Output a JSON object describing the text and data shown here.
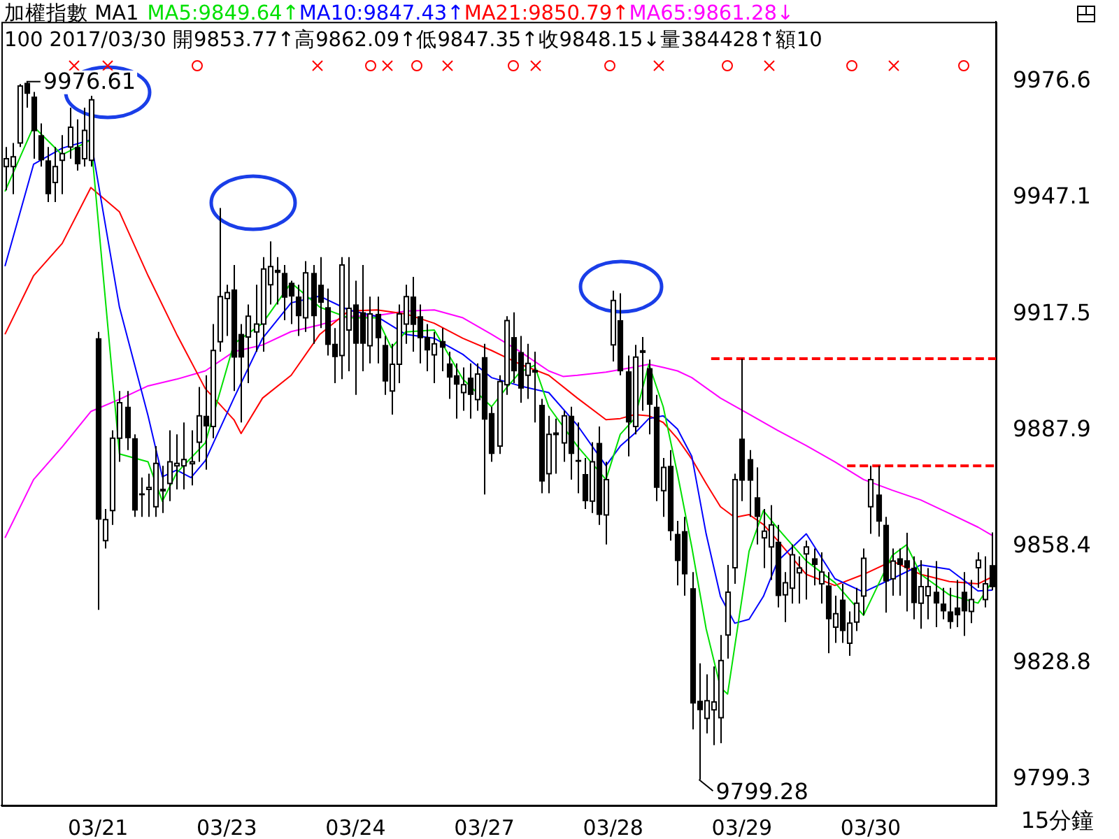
{
  "chart_data": {
    "type": "candlestick",
    "title": "加權指數 MA1",
    "subtitle": "100 2017/03/30 開9853.77↑高9862.09↑低9847.35↑收9848.15↓量384428↑額10",
    "categories": [
      null,
      null,
      null,
      null,
      null,
      null,
      null,
      null,
      null,
      null,
      null,
      null,
      null,
      "03/21",
      null,
      null,
      null,
      null,
      null,
      null,
      null,
      null,
      null,
      null,
      null,
      null,
      null,
      null,
      null,
      null,
      null,
      "03/23",
      null,
      null,
      null,
      null,
      null,
      null,
      null,
      null,
      null,
      null,
      null,
      null,
      null,
      null,
      null,
      null,
      null,
      "03/24",
      null,
      null,
      null,
      null,
      null,
      null,
      null,
      null,
      null,
      null,
      null,
      null,
      null,
      null,
      null,
      null,
      null,
      "03/27",
      null,
      null,
      null,
      null,
      null,
      null,
      null,
      null,
      null,
      null,
      null,
      null,
      null,
      null,
      null,
      null,
      null,
      "03/28",
      null,
      null,
      null,
      null,
      null,
      null,
      null,
      null,
      null,
      null,
      null,
      null,
      null,
      null,
      null,
      null,
      null,
      "03/29",
      null,
      null,
      null,
      null,
      null,
      null,
      null,
      null,
      null,
      null,
      null,
      null,
      null,
      null,
      null,
      null,
      null,
      "03/30",
      null,
      null,
      null,
      null,
      null,
      null,
      null,
      null,
      null,
      null,
      null,
      null,
      null,
      null,
      null,
      null,
      null
    ],
    "ohlc": [
      [
        9955,
        9960,
        9949,
        9957
      ],
      [
        9955,
        9961,
        9948,
        9957.5
      ],
      [
        9961,
        9976,
        9960,
        9975.5
      ],
      [
        9976.3,
        9976.61,
        9970,
        9973.5
      ],
      [
        9972.8,
        9974,
        9957,
        9964
      ],
      [
        9963,
        9966,
        9955,
        9956.6
      ],
      [
        9956.6,
        9960,
        9946,
        9948
      ],
      [
        9951,
        9960,
        9946,
        9955
      ],
      [
        9956.6,
        9963,
        9948,
        9958.3
      ],
      [
        9960,
        9970,
        9957,
        9965
      ],
      [
        9960,
        9967,
        9954,
        9955.6
      ],
      [
        9957,
        9970,
        9955,
        9964.2
      ],
      [
        9956.6,
        9973,
        9955,
        9972
      ],
      [
        9911.4,
        9913,
        9842.4,
        9865.3
      ],
      [
        9860,
        9868,
        9858,
        9865.3
      ],
      [
        9867.6,
        9888,
        9864,
        9886
      ],
      [
        9886,
        9898,
        9880,
        9895
      ],
      [
        9894,
        9898,
        9883,
        9886
      ],
      [
        9886,
        9887,
        9866,
        9867.6
      ],
      [
        9872,
        9876,
        9866,
        9871.5
      ],
      [
        9873,
        9877,
        9866,
        9873.5
      ],
      [
        9868.6,
        9884,
        9866,
        9879.6
      ],
      [
        9873,
        9879,
        9867,
        9873
      ],
      [
        9874.5,
        9888,
        9870,
        9880
      ],
      [
        9879,
        9887,
        9873,
        9879.6
      ],
      [
        9879,
        9890,
        9873,
        9880.6
      ],
      [
        9879.5,
        9888,
        9874,
        9880
      ],
      [
        9885,
        9899,
        9880,
        9891.7
      ],
      [
        9891.7,
        9902,
        9878,
        9889
      ],
      [
        9889,
        9915,
        9886,
        9908.3
      ],
      [
        9910.5,
        9944.5,
        9908,
        9922
      ],
      [
        9921.5,
        9925,
        9912,
        9923
      ],
      [
        9923.8,
        9930,
        9898,
        9906.5
      ],
      [
        9912.5,
        9915,
        9890,
        9906.5
      ],
      [
        9911.7,
        9920,
        9900,
        9917
      ],
      [
        9913,
        9925,
        9908,
        9915
      ],
      [
        9915,
        9932,
        9908,
        9929
      ],
      [
        9925,
        9936,
        9920,
        9929.6
      ],
      [
        9928.8,
        9932,
        9920,
        9928
      ],
      [
        9928,
        9930,
        9916,
        9921.7
      ],
      [
        9925.5,
        9926,
        9915,
        9922
      ],
      [
        9922,
        9925,
        9912,
        9917
      ],
      [
        9916.6,
        9931,
        9913,
        9928
      ],
      [
        9928,
        9930,
        9910,
        9917
      ],
      [
        9925,
        9932,
        9914,
        9920.4
      ],
      [
        9919.3,
        9924,
        9907,
        9909.7
      ],
      [
        9910,
        9914,
        9900,
        9906.6
      ],
      [
        9907,
        9932,
        9901,
        9930
      ],
      [
        9913.5,
        9932,
        9903,
        9919
      ],
      [
        9920,
        9926,
        9897,
        9910
      ],
      [
        9918,
        9930,
        9903,
        9910
      ],
      [
        9909.5,
        9922,
        9905,
        9917.6
      ],
      [
        9917.6,
        9922,
        9905,
        9911.4
      ],
      [
        9909.7,
        9912,
        9897,
        9900.4
      ],
      [
        9898,
        9910,
        9892,
        9904.8
      ],
      [
        9904.8,
        9920,
        9900,
        9917.6
      ],
      [
        9915,
        9925,
        9910,
        9922
      ],
      [
        9922,
        9927,
        9908,
        9914.8
      ],
      [
        9917,
        9920,
        9905,
        9911.4
      ],
      [
        9911.7,
        9915,
        9903,
        9908.3
      ],
      [
        9907.2,
        9913,
        9900,
        9910
      ],
      [
        9910.7,
        9914,
        9903,
        9909
      ],
      [
        9905,
        9908,
        9896,
        9901.4
      ],
      [
        9902,
        9905,
        9891,
        9899.6
      ],
      [
        9897.6,
        9904,
        9893,
        9899.6
      ],
      [
        9901.4,
        9905,
        9891,
        9897
      ],
      [
        9895.8,
        9905,
        9893,
        9902.3
      ],
      [
        9906.6,
        9910,
        9871.7,
        9890.7
      ],
      [
        9892.4,
        9894,
        9880,
        9882
      ],
      [
        9884,
        9902,
        9882,
        9900.4
      ],
      [
        9899.6,
        9917,
        9897,
        9915.9
      ],
      [
        9911.7,
        9918,
        9900,
        9903
      ],
      [
        9907.9,
        9912,
        9895,
        9898.6
      ],
      [
        9902,
        9910,
        9896,
        9905
      ],
      [
        9903,
        9908,
        9890,
        9903.2
      ],
      [
        9894.5,
        9896,
        9872,
        9875
      ],
      [
        9877,
        9891.7,
        9872,
        9887
      ],
      [
        9887,
        9891,
        9877,
        9887.3
      ],
      [
        9884.8,
        9893,
        9880,
        9891.7
      ],
      [
        9891.7,
        9894,
        9875.5,
        9882
      ],
      [
        9880.5,
        9890,
        9872,
        9880
      ],
      [
        9876.9,
        9881,
        9868,
        9870
      ],
      [
        9870,
        9885,
        9867,
        9880
      ],
      [
        9884.8,
        9889,
        9864,
        9866.5
      ],
      [
        9866.5,
        9880,
        9859,
        9875.5
      ],
      [
        9909.7,
        9923.5,
        9905.5,
        9921
      ],
      [
        9916,
        9922.8,
        9902,
        9903
      ],
      [
        9903,
        9907,
        9881.4,
        9890
      ],
      [
        9889,
        9909.7,
        9887,
        9906.6
      ],
      [
        9908,
        9911.7,
        9893,
        9908.2
      ],
      [
        9903.8,
        9906,
        9887,
        9894.5
      ],
      [
        9894,
        9897,
        9870,
        9873.4
      ],
      [
        9872.7,
        9881,
        9866,
        9878.6
      ],
      [
        9879,
        9883,
        9860,
        9862.4
      ],
      [
        9861.7,
        9865,
        9848.6,
        9854.8
      ],
      [
        9862.4,
        9866,
        9846,
        9851.4
      ],
      [
        9847.9,
        9852,
        9812,
        9818.6
      ],
      [
        9819.3,
        9828.8,
        9799.28,
        9816.9
      ],
      [
        9814.8,
        9826,
        9811,
        9819.3
      ],
      [
        9817,
        9828,
        9808,
        9819
      ],
      [
        9815,
        9836,
        9808.5,
        9829.5
      ],
      [
        9836,
        9853.8,
        9830,
        9846.9
      ],
      [
        9853.1,
        9877,
        9849,
        9875.5
      ],
      [
        9885.9,
        9906.2,
        9870,
        9875.2
      ],
      [
        9880.7,
        9883,
        9866,
        9875.2
      ],
      [
        9871,
        9878.6,
        9859,
        9866
      ],
      [
        9860.7,
        9868,
        9853,
        9862.4
      ],
      [
        9858.4,
        9869,
        9850,
        9864
      ],
      [
        9859.7,
        9864,
        9843,
        9845.9
      ],
      [
        9846.2,
        9852,
        9839.3,
        9849.3
      ],
      [
        9847.9,
        9859,
        9844,
        9856.4
      ],
      [
        9851.8,
        9856,
        9844,
        9853
      ],
      [
        9856.6,
        9860,
        9845,
        9858.4
      ],
      [
        9855.5,
        9858,
        9848.6,
        9853.8
      ],
      [
        9849,
        9857,
        9844,
        9852
      ],
      [
        9848.6,
        9852,
        9831.4,
        9840
      ],
      [
        9838,
        9846,
        9834,
        9841.4
      ],
      [
        9845,
        9849,
        9834,
        9837
      ],
      [
        9833.9,
        9842,
        9830.7,
        9839
      ],
      [
        9839.3,
        9848,
        9837,
        9844.1
      ],
      [
        9845.9,
        9858,
        9841,
        9855.5
      ],
      [
        9868.6,
        9879,
        9861.7,
        9875.5
      ],
      [
        9871.7,
        9879,
        9861,
        9864.8
      ],
      [
        9864,
        9866,
        9841.7,
        9849.6
      ],
      [
        9850.3,
        9858,
        9846,
        9854.8
      ],
      [
        9855.5,
        9858,
        9846,
        9853.8
      ],
      [
        9855,
        9862,
        9842,
        9853
      ],
      [
        9853.1,
        9856,
        9840,
        9844.1
      ],
      [
        9844.1,
        9855,
        9837.6,
        9848.3
      ],
      [
        9846,
        9853,
        9840,
        9848.3
      ],
      [
        9847,
        9854.8,
        9838,
        9844
      ],
      [
        9844,
        9848,
        9840,
        9842
      ],
      [
        9842,
        9848,
        9837.6,
        9839.3
      ],
      [
        9843,
        9850,
        9838,
        9841
      ],
      [
        9847,
        9852,
        9835.8,
        9842
      ],
      [
        9842,
        9850,
        9839,
        9845
      ],
      [
        9853.1,
        9857,
        9848,
        9855
      ],
      [
        9845,
        9856,
        9843,
        9849
      ],
      [
        9853.77,
        9862.09,
        9847.35,
        9848.15
      ]
    ],
    "series": [
      {
        "type": "line",
        "name": "MA5:9849.64↑",
        "color": "#00e000",
        "values": [
          9948.7,
          null,
          null,
          null,
          9965.2,
          null,
          null,
          null,
          9958,
          null,
          null,
          null,
          9961.8,
          null,
          null,
          null,
          9882,
          null,
          null,
          null,
          9880,
          null,
          9870,
          null,
          9877.2,
          null,
          null,
          null,
          9884.8,
          null,
          null,
          null,
          9910,
          null,
          null,
          null,
          9915.2,
          null,
          null,
          null,
          9925.5,
          null,
          null,
          null,
          9919.3,
          null,
          null,
          null,
          9916.6,
          null,
          null,
          null,
          9916.6,
          null,
          9909,
          null,
          9913,
          null,
          null,
          null,
          9913.5,
          null,
          null,
          null,
          9901,
          null,
          null,
          null,
          9894,
          null,
          9898.6,
          null,
          9902.8,
          null,
          9904.5,
          null,
          9894,
          null,
          null,
          null,
          9884,
          null,
          null,
          null,
          9875.5,
          null,
          9887,
          null,
          9891,
          null,
          9904.8,
          null,
          9894,
          null,
          9876.9,
          null,
          9858.3,
          null,
          9837.6,
          null,
          9822.7,
          9821,
          null,
          null,
          9857.3,
          null,
          9867.6,
          null,
          9863.1,
          null,
          null,
          null,
          9854.8,
          null,
          null,
          null,
          9849.3,
          null,
          null,
          null,
          9841,
          null,
          null,
          null,
          9856.2,
          null,
          9858.9,
          null,
          9851.4,
          null,
          null,
          null,
          9846.2,
          null,
          null,
          null,
          9844.1,
          null,
          9849.64
        ]
      },
      {
        "type": "line",
        "name": "MA10:9847.43↑",
        "color": "#0000ff",
        "values": [
          9929.7,
          null,
          null,
          null,
          9955.6,
          null,
          null,
          null,
          9959.7,
          null,
          null,
          null,
          9961.8,
          null,
          null,
          null,
          9919.3,
          null,
          null,
          null,
          9891.7,
          null,
          9876.2,
          null,
          9877.9,
          null,
          9876,
          null,
          9880.3,
          null,
          null,
          null,
          9896.2,
          null,
          null,
          null,
          9911.4,
          null,
          null,
          null,
          9920.4,
          null,
          null,
          null,
          9922.1,
          null,
          null,
          null,
          9918.6,
          null,
          null,
          null,
          9916.9,
          null,
          null,
          null,
          9912.4,
          null,
          null,
          null,
          9911.4,
          null,
          null,
          null,
          9907.3,
          null,
          null,
          null,
          9901.4,
          null,
          null,
          null,
          9899.3,
          null,
          null,
          null,
          9897.6,
          null,
          null,
          null,
          9889.3,
          null,
          null,
          null,
          9879,
          null,
          9884,
          null,
          9887.2,
          null,
          9891,
          null,
          9891.7,
          null,
          9888.3,
          null,
          9881.4,
          null,
          9861.7,
          null,
          9845.8,
          null,
          9839,
          null,
          9840,
          null,
          9845.8,
          null,
          9854.8,
          null,
          null,
          null,
          9861.7,
          null,
          null,
          null,
          9850.3,
          null,
          null,
          null,
          9846.9,
          null,
          null,
          null,
          9850.3,
          null,
          null,
          null,
          9853.8,
          null,
          null,
          null,
          9852.7,
          null,
          null,
          null,
          9847.2,
          null,
          9847.43
        ]
      },
      {
        "type": "line",
        "name": "MA21:9850.79↑",
        "color": "#ff0000",
        "values": [
          9912.4,
          null,
          null,
          null,
          9927.3,
          null,
          null,
          null,
          9935.5,
          null,
          null,
          null,
          9949.7,
          null,
          null,
          null,
          9943.5,
          null,
          null,
          null,
          9927.3,
          null,
          null,
          null,
          9912.4,
          null,
          null,
          null,
          9898.6,
          null,
          null,
          null,
          9890.7,
          9887.2,
          null,
          null,
          9896.2,
          null,
          null,
          null,
          9902,
          null,
          null,
          null,
          9912.4,
          null,
          null,
          null,
          9918.3,
          null,
          null,
          null,
          9918.6,
          null,
          null,
          null,
          9917.6,
          null,
          null,
          null,
          9915.2,
          null,
          null,
          null,
          9911.4,
          null,
          null,
          null,
          9908.3,
          null,
          null,
          null,
          9904.8,
          null,
          null,
          null,
          9902,
          null,
          null,
          null,
          9896.2,
          null,
          null,
          null,
          9890.7,
          null,
          9891,
          null,
          9892,
          null,
          9891.7,
          null,
          9890,
          null,
          9885.9,
          null,
          9880.7,
          null,
          9874.5,
          null,
          9868.6,
          null,
          9865.9,
          null,
          9866.6,
          null,
          9864.1,
          null,
          9860,
          null,
          null,
          null,
          9851.4,
          null,
          null,
          null,
          9848.6,
          null,
          null,
          null,
          9851.4,
          null,
          null,
          null,
          9854.8,
          null,
          null,
          null,
          9851.4,
          null,
          null,
          null,
          9849.6,
          null,
          null,
          null,
          9849,
          null,
          9850.79
        ]
      },
      {
        "type": "line",
        "name": "MA65:9861.28↓",
        "color": "#ff00ff",
        "values": [
          9860.7,
          null,
          null,
          null,
          9875.5,
          null,
          null,
          null,
          9883.8,
          null,
          null,
          null,
          9892.8,
          null,
          null,
          null,
          9895.9,
          null,
          null,
          null,
          9899.3,
          null,
          null,
          null,
          9901,
          null,
          null,
          null,
          9903.1,
          null,
          null,
          null,
          9908,
          null,
          null,
          null,
          9909.7,
          null,
          null,
          null,
          9913.1,
          null,
          null,
          null,
          9914.8,
          null,
          null,
          null,
          9916.9,
          null,
          null,
          null,
          9917.2,
          null,
          null,
          null,
          9918.3,
          null,
          null,
          null,
          9918.6,
          null,
          null,
          null,
          9916.6,
          null,
          null,
          null,
          9912.4,
          null,
          null,
          null,
          9908,
          null,
          null,
          null,
          9903.1,
          null,
          9901.7,
          null,
          9902,
          null,
          null,
          null,
          9902.8,
          null,
          null,
          null,
          9904.1,
          null,
          9904.8,
          null,
          9904,
          null,
          9903.1,
          null,
          9901.4,
          null,
          null,
          null,
          9896.2,
          null,
          null,
          null,
          9892.1,
          null,
          null,
          null,
          9888,
          null,
          null,
          null,
          9884.1,
          null,
          null,
          null,
          9880,
          null,
          null,
          null,
          9875.5,
          null,
          null,
          null,
          9872.8,
          null,
          null,
          null,
          9870.3,
          null,
          null,
          null,
          9866.9,
          null,
          null,
          null,
          9863.4,
          null,
          9861.28
        ]
      }
    ],
    "ylim": [
      9792.7,
      9991.8
    ],
    "yticks": [
      9976.6,
      9947.1,
      9917.5,
      9887.9,
      9858.4,
      9828.8,
      9799.3
    ],
    "ref_lines": [
      {
        "axis": "y",
        "value": 9906.2,
        "color": "#ff0000",
        "line_style": "dashed"
      },
      {
        "axis": "y",
        "value": 9879,
        "color": "#ff0000",
        "line_style": "dashed"
      }
    ],
    "xlabel": "15分鐘",
    "annotations": [
      "9976.61",
      "9799.28"
    ],
    "legend": "top left",
    "marker": "none"
  }
}
